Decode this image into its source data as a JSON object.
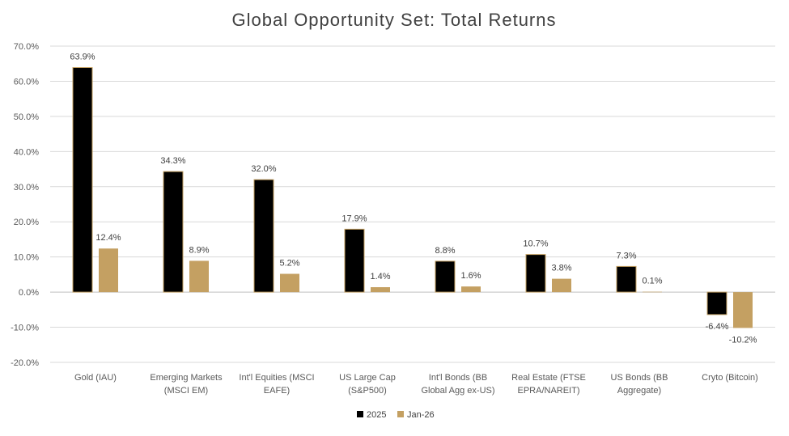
{
  "chart_data": {
    "type": "bar",
    "title": "Global Opportunity Set: Total Returns",
    "xlabel": "",
    "ylabel": "",
    "ylim": [
      -20,
      70
    ],
    "yticks": [
      "70.0%",
      "60.0%",
      "50.0%",
      "40.0%",
      "30.0%",
      "20.0%",
      "10.0%",
      "0.0%",
      "-10.0%",
      "-20.0%"
    ],
    "grid": true,
    "legend_position": "bottom",
    "categories": [
      [
        "Gold (IAU)"
      ],
      [
        "Emerging Markets",
        "(MSCI EM)"
      ],
      [
        "Int'l Equities (MSCI",
        "EAFE)"
      ],
      [
        "US Large Cap",
        "(S&P500)"
      ],
      [
        "Int'l Bonds (BB",
        "Global Agg ex-US)"
      ],
      [
        "Real Estate (FTSE",
        "EPRA/NAREIT)"
      ],
      [
        "US Bonds (BB",
        "Aggregate)"
      ],
      [
        "Cryto (Bitcoin)"
      ]
    ],
    "series": [
      {
        "name": "2025",
        "color": "#000000",
        "values": [
          63.9,
          34.3,
          32.0,
          17.9,
          8.8,
          10.7,
          7.3,
          -6.4
        ],
        "labels": [
          "63.9%",
          "34.3%",
          "32.0%",
          "17.9%",
          "8.8%",
          "10.7%",
          "7.3%",
          "-6.4%"
        ]
      },
      {
        "name": "Jan-26",
        "color": "#c4a062",
        "values": [
          12.4,
          8.9,
          5.2,
          1.4,
          1.6,
          3.8,
          0.1,
          -10.2
        ],
        "labels": [
          "12.4%",
          "8.9%",
          "5.2%",
          "1.4%",
          "1.6%",
          "3.8%",
          "0.1%",
          "-10.2%"
        ]
      }
    ]
  }
}
